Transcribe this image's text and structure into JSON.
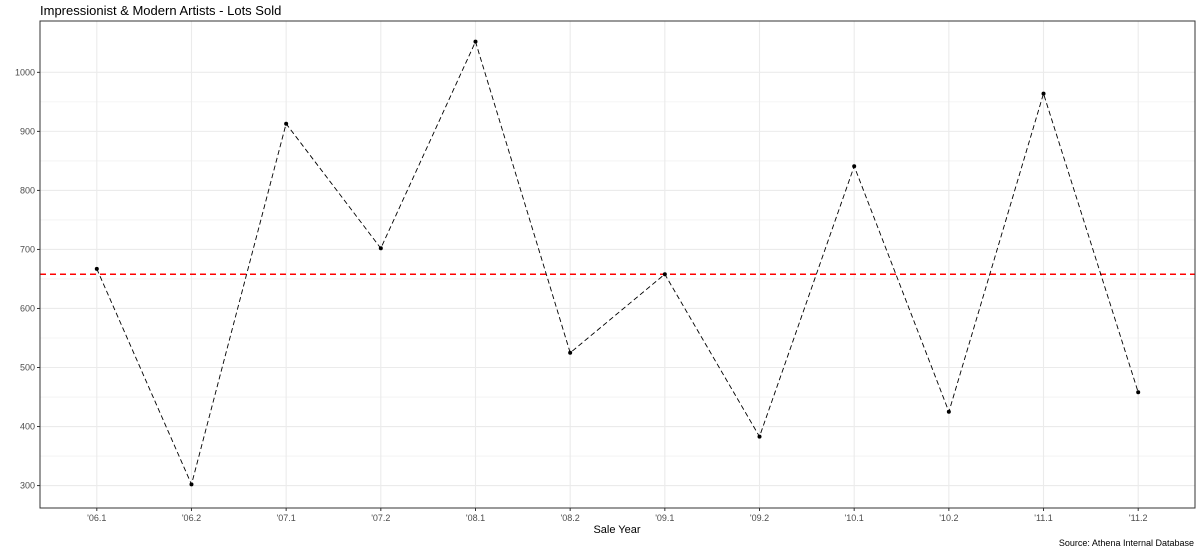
{
  "chart_data": {
    "type": "line",
    "title": "Impressionist & Modern Artists - Lots Sold",
    "caption": "Source: Athena Internal Database",
    "xlabel": "Sale Year",
    "ylabel": "",
    "categories": [
      "'06.1",
      "'06.2",
      "'07.1",
      "'07.2",
      "'08.1",
      "'08.2",
      "'09.1",
      "'09.2",
      "'10.1",
      "'10.2",
      "'11.1",
      "'11.2"
    ],
    "series": [
      {
        "values": [
          667,
          302,
          913,
          702,
          1052,
          525,
          658,
          383,
          841,
          425,
          964,
          458
        ],
        "line_style": "dashed",
        "color": "#000000",
        "markers": true
      }
    ],
    "reference_line": {
      "y": 658,
      "color": "#ff0000",
      "style": "dashed"
    },
    "yticks": [
      300,
      400,
      500,
      600,
      700,
      800,
      900,
      1000
    ],
    "ylim": [
      262,
      1087
    ],
    "grid": true,
    "colors": {
      "grid": "#ebebeb",
      "border": "#333333",
      "reference": "#ff0000",
      "series": "#000000"
    }
  }
}
